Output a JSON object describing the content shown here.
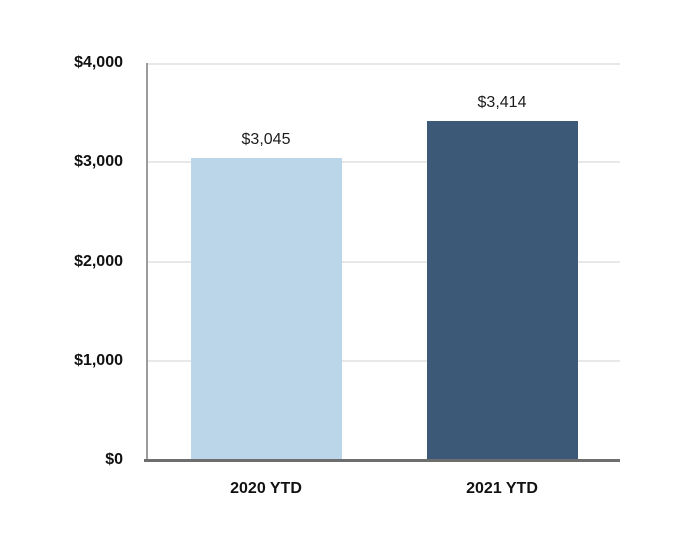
{
  "chart_data": {
    "type": "bar",
    "categories": [
      "2020 YTD",
      "2021 YTD"
    ],
    "values": [
      3045,
      3414
    ],
    "value_labels": [
      "$3,045",
      "$3,414"
    ],
    "series": [
      {
        "name": "2020 YTD",
        "values": [
          3045
        ]
      },
      {
        "name": "2021 YTD",
        "values": [
          3414
        ]
      }
    ],
    "title": "",
    "xlabel": "",
    "ylabel": "",
    "ylim": [
      0,
      4000
    ],
    "yticks": [
      0,
      1000,
      2000,
      3000,
      4000
    ],
    "ytick_labels": [
      "$0",
      "$1,000",
      "$2,000",
      "$3,000",
      "$4,000"
    ],
    "grid": "horizontal",
    "legend": "none",
    "bar_colors": [
      "#BCD6E9",
      "#3C5A78"
    ],
    "colors": {
      "background": "#FFFFFF",
      "gridline": "#E8E8E8",
      "y_axis_line": "#9C9C9C",
      "x_axis_line": "#6E6E6E",
      "tick_label_text": "#111111",
      "value_label_text": "#1C1C1C"
    }
  }
}
